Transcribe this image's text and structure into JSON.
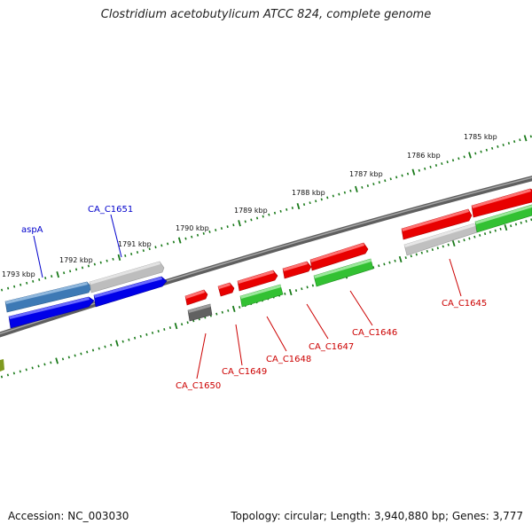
{
  "title": "Clostridium acetobutylicum ATCC 824, complete genome",
  "accession": "Accession: NC_003030",
  "topology": "Topology: circular; Length: 3,940,880 bp; Genes: 3,777",
  "kbp_labels": [
    "1793 kbp",
    "1792 kbp",
    "1791 kbp",
    "1790 kbp",
    "1789 kbp",
    "1788 kbp",
    "1787 kbp",
    "1786 kbp",
    "1785 kbp"
  ],
  "gene_labels": {
    "aspA": "aspA",
    "CA_C1651": "CA_C1651",
    "CA_C1650": "CA_C1650",
    "CA_C1649": "CA_C1649",
    "CA_C1648": "CA_C1648",
    "CA_C1647": "CA_C1647",
    "CA_C1646": "CA_C1646",
    "CA_C1645": "CA_C1645"
  },
  "colors": {
    "backbone": "#808080",
    "tick": "#1a7a1a",
    "blue": "#0000ee",
    "steelblue": "#4a86c0",
    "red": "#ee0000",
    "green": "#33cc33",
    "lightgray": "#c4c4c4",
    "darkgray": "#666666",
    "olive": "#8aa020",
    "label_blue": "#0000cc",
    "label_red": "#cc0000"
  }
}
